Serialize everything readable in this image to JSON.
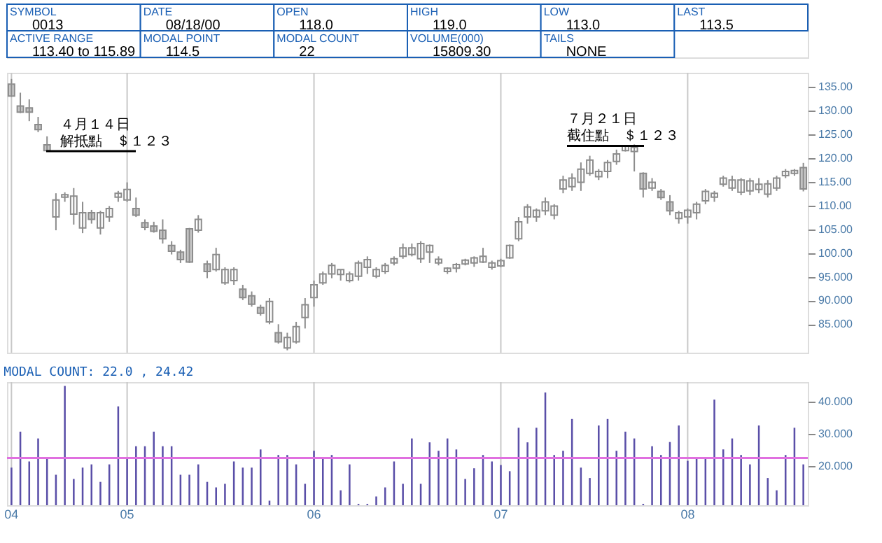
{
  "chart_data": [
    {
      "type": "other",
      "annotations": [
        "SYMBOL",
        "0013",
        "DATE",
        "08/18/00",
        "OPEN",
        "118.0",
        "HIGH",
        "119.0",
        "LOW",
        "113.0",
        "LAST",
        "113.5",
        "ACTIVE RANGE",
        "113.40 to 115.89",
        "MODAL POINT",
        "114.5",
        "MODAL COUNT",
        "22",
        "VOLUME(000)",
        "15809.30",
        "TAILS",
        "NONE"
      ]
    },
    {
      "type": "candlestick",
      "color": "#8c8c8c",
      "categories": [
        "04",
        null,
        null,
        null,
        null,
        null,
        null,
        null,
        null,
        null,
        null,
        null,
        null,
        "05",
        null,
        null,
        null,
        null,
        null,
        null,
        null,
        null,
        null,
        null,
        null,
        null,
        null,
        null,
        null,
        null,
        null,
        null,
        null,
        null,
        "06",
        null,
        null,
        null,
        null,
        null,
        null,
        null,
        null,
        null,
        null,
        null,
        null,
        null,
        null,
        null,
        null,
        null,
        null,
        null,
        null,
        "07",
        null,
        null,
        null,
        null,
        null,
        null,
        null,
        null,
        null,
        null,
        null,
        null,
        null,
        null,
        null,
        null,
        null,
        null,
        null,
        null,
        "08",
        null,
        null,
        null,
        null,
        null,
        null,
        null,
        null,
        null,
        null,
        null,
        null,
        null
      ],
      "ohlc": [
        [
          135.6,
          136.7,
          132.9,
          133.1
        ],
        [
          131,
          133.8,
          129.5,
          129.7
        ],
        [
          130.6,
          132.4,
          127.8,
          129.7
        ],
        [
          127.1,
          128.7,
          125.5,
          126
        ],
        [
          122.8,
          124.6,
          121.4,
          121.6
        ],
        [
          107.6,
          112.6,
          104.8,
          111.2
        ],
        [
          111.8,
          112.8,
          110.8,
          112.3
        ],
        [
          108.2,
          113.7,
          106,
          112
        ],
        [
          105.3,
          110.8,
          104.2,
          108.5
        ],
        [
          108.5,
          109.1,
          106.2,
          107.1
        ],
        [
          105.3,
          108.9,
          103.9,
          108.5
        ],
        [
          107.6,
          109.9,
          106.6,
          109.4
        ],
        [
          111.8,
          113.1,
          110.8,
          112.6
        ],
        [
          111.2,
          114.9,
          110.8,
          113.4
        ],
        [
          109.4,
          111.7,
          107.6,
          108
        ],
        [
          106.4,
          107.1,
          104.8,
          105.4
        ],
        [
          105.7,
          106.6,
          104.3,
          104.6
        ],
        [
          104.8,
          107.1,
          102,
          103
        ],
        [
          101.6,
          102.5,
          99.7,
          100.4
        ],
        [
          100.2,
          100.7,
          97.9,
          98.6
        ],
        [
          105.1,
          105.3,
          97.9,
          98.1
        ],
        [
          104.8,
          108,
          104.3,
          107.1
        ],
        [
          97.7,
          98.4,
          94.7,
          96.1
        ],
        [
          96.5,
          101.1,
          96.1,
          99.7
        ],
        [
          93.7,
          97,
          93.3,
          96.5
        ],
        [
          94.2,
          97,
          93.3,
          96.5
        ],
        [
          92.4,
          93.3,
          90.1,
          90.6
        ],
        [
          91,
          91.9,
          88.7,
          89.2
        ],
        [
          88.5,
          89.1,
          86.8,
          87.3
        ],
        [
          85.5,
          90.5,
          85,
          89.8
        ],
        [
          83.2,
          85,
          80.9,
          81.3
        ],
        [
          80,
          83.2,
          79.5,
          82.2
        ],
        [
          81.3,
          85.5,
          80.9,
          84.5
        ],
        [
          86.4,
          90.5,
          84.1,
          89.1
        ],
        [
          90.6,
          94.2,
          88.7,
          93.3
        ],
        [
          93.7,
          96.1,
          93.3,
          95.6
        ],
        [
          95.6,
          97.9,
          94.7,
          97.4
        ],
        [
          95.5,
          96.5,
          94.2,
          96.5
        ],
        [
          94.2,
          96.1,
          93.8,
          95.6
        ],
        [
          95.1,
          98.4,
          94.2,
          97.9
        ],
        [
          97,
          99.3,
          95.6,
          98.6
        ],
        [
          95.1,
          97,
          94.7,
          96.5
        ],
        [
          96.1,
          97.9,
          95.6,
          97.4
        ],
        [
          97.9,
          99.3,
          97.4,
          98.8
        ],
        [
          99.3,
          102,
          98.8,
          101.1
        ],
        [
          99.7,
          102,
          99.3,
          101.1
        ],
        [
          98.8,
          102.5,
          97.9,
          102
        ],
        [
          100.2,
          101.8,
          97.9,
          101.6
        ],
        [
          97.9,
          99.3,
          97.4,
          98.7
        ],
        [
          96.1,
          97,
          95.6,
          96.8
        ],
        [
          96.8,
          97.9,
          95.9,
          97.6
        ],
        [
          97.7,
          98.8,
          97.4,
          98.5
        ],
        [
          97.9,
          99.3,
          97.1,
          99
        ],
        [
          98.1,
          101.1,
          97.9,
          99.3
        ],
        [
          97,
          98.4,
          96.5,
          97.9
        ],
        [
          97.3,
          98.8,
          97,
          98.4
        ],
        [
          99,
          101.8,
          98.8,
          101.6
        ],
        [
          103,
          107.6,
          102.5,
          106.6
        ],
        [
          107.6,
          110.3,
          106.2,
          109.7
        ],
        [
          107.6,
          109.4,
          106.6,
          109
        ],
        [
          108.9,
          111.7,
          108,
          110.8
        ],
        [
          108,
          110.3,
          107.1,
          109.9
        ],
        [
          113.5,
          116.3,
          112.6,
          115.4
        ],
        [
          114,
          116.8,
          113.1,
          115.8
        ],
        [
          114.9,
          119.1,
          113.1,
          117.7
        ],
        [
          116.8,
          120.5,
          116.3,
          119.6
        ],
        [
          116.1,
          117.7,
          115.4,
          117.2
        ],
        [
          117.2,
          119.6,
          115.8,
          119.1
        ],
        [
          119.3,
          121.8,
          118.6,
          120.9
        ],
        [
          121.6,
          122.8,
          121.4,
          122.6
        ],
        [
          121.4,
          122.9,
          117.2,
          122.3
        ],
        [
          116.8,
          117,
          111.7,
          113.5
        ],
        [
          113.7,
          115.8,
          113.1,
          114.9
        ],
        [
          113,
          113.5,
          111.2,
          111.7
        ],
        [
          110.8,
          112.2,
          108,
          108.9
        ],
        [
          107.3,
          108.9,
          106.2,
          108.5
        ],
        [
          107.6,
          109.4,
          106.2,
          109
        ],
        [
          108.5,
          110.8,
          107.1,
          110.3
        ],
        [
          111,
          113.5,
          110.3,
          113
        ],
        [
          111.8,
          113.1,
          110.8,
          112.6
        ],
        [
          114.5,
          116.3,
          114,
          115.8
        ],
        [
          113.7,
          116.3,
          113.1,
          115.4
        ],
        [
          112.8,
          115.8,
          112.2,
          115.4
        ],
        [
          113.1,
          115.8,
          112.2,
          115.2
        ],
        [
          113.4,
          115.8,
          112.6,
          114.5
        ],
        [
          112.4,
          115.4,
          111.7,
          114.6
        ],
        [
          113.7,
          116.3,
          113.1,
          115.8
        ],
        [
          116.3,
          117.7,
          115.8,
          117.2
        ],
        [
          116.8,
          117.7,
          116.3,
          117.4
        ],
        [
          118,
          119,
          113,
          113.5
        ]
      ],
      "ylim": [
        79,
        138
      ],
      "yticks": [
        {
          "value": 85,
          "label": "85.000"
        },
        {
          "value": 90,
          "label": "90.000"
        },
        {
          "value": 95,
          "label": "95.000"
        },
        {
          "value": 100,
          "label": "100.00"
        },
        {
          "value": 105,
          "label": "105.00"
        },
        {
          "value": 110,
          "label": "110.00"
        },
        {
          "value": 115,
          "label": "115.00"
        },
        {
          "value": 120,
          "label": "120.00"
        },
        {
          "value": 125,
          "label": "125.00"
        },
        {
          "value": 130,
          "label": "130.00"
        },
        {
          "value": 135,
          "label": "135.00"
        }
      ],
      "tick_labels": "y",
      "grid": "x",
      "annotations": [
        "４月１４日",
        "解抵點　＄１２３",
        "７月２１日",
        {
          "text": "截住點　＄１２３",
          "y": 122.6
        }
      ]
    },
    {
      "type": "bar",
      "title": "MODAL COUNT:  22.0 , 24.42",
      "color": "#5a4fa8",
      "categories": [
        "04",
        null,
        null,
        null,
        null,
        null,
        null,
        null,
        null,
        null,
        null,
        null,
        null,
        "05",
        null,
        null,
        null,
        null,
        null,
        null,
        null,
        null,
        null,
        null,
        null,
        null,
        null,
        null,
        null,
        null,
        null,
        null,
        null,
        null,
        "06",
        null,
        null,
        null,
        null,
        null,
        null,
        null,
        null,
        null,
        null,
        null,
        null,
        null,
        null,
        null,
        null,
        null,
        null,
        null,
        null,
        "07",
        null,
        null,
        null,
        null,
        null,
        null,
        null,
        null,
        null,
        null,
        null,
        null,
        null,
        null,
        null,
        null,
        null,
        null,
        null,
        null,
        "08",
        null,
        null,
        null,
        null,
        null,
        null,
        null,
        null,
        null,
        null,
        null,
        null,
        null
      ],
      "values": [
        19.6,
        30.7,
        21.5,
        28.6,
        22.8,
        17.4,
        44.8,
        16.1,
        19.6,
        20.6,
        15.2,
        20.6,
        38.5,
        22.8,
        26.2,
        26.2,
        30.7,
        26.2,
        26.2,
        17.4,
        17.4,
        20.6,
        15.2,
        13.5,
        14.6,
        21.5,
        19.6,
        19.6,
        25.2,
        9.4,
        23.5,
        23.5,
        20.6,
        14.6,
        24.8,
        22.8,
        23.5,
        12.6,
        20.6,
        8.4,
        8.4,
        10.7,
        13.5,
        21.5,
        14.6,
        28.6,
        14.6,
        27.4,
        24.8,
        28.6,
        25.2,
        16.1,
        19.4,
        23.5,
        21.5,
        20.4,
        18.5,
        31.9,
        27.4,
        31.9,
        42.8,
        23.5,
        24.8,
        34.6,
        19.6,
        16.4,
        32.6,
        34.6,
        24.8,
        30.7,
        28.6,
        8.4,
        26.2,
        23.5,
        27.5,
        32.6,
        21.7,
        22.8,
        22.8,
        40.6,
        25.2,
        28.6,
        23.5,
        20.6,
        32.6,
        16.4,
        12.6,
        23.5,
        31.9,
        20.6
      ],
      "ylim": [
        8,
        46
      ],
      "yticks": [
        {
          "value": 20,
          "label": "20.000"
        },
        {
          "value": 30,
          "label": "30.000"
        },
        {
          "value": 40,
          "label": "40.000"
        }
      ],
      "grid": "x",
      "ref_lines": [
        {
          "axis": "y",
          "value": 22.6,
          "color": "#e070e0"
        }
      ]
    }
  ]
}
